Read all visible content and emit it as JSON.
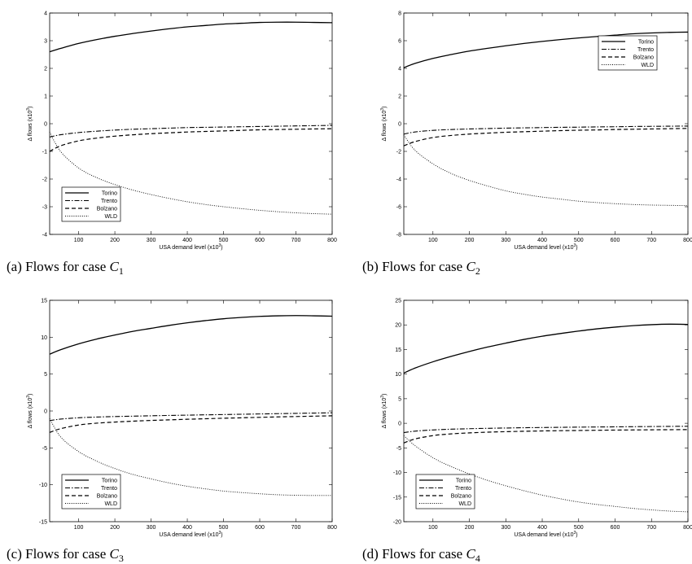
{
  "chart_data": [
    {
      "type": "line",
      "caption": {
        "prefix": "(a)  Flows for case ",
        "var": "C",
        "sub": "1"
      },
      "xlabel": "USA demand level (x10",
      "xlabel_sup": "3",
      "ylabel": "Δ flows (x10",
      "ylabel_sup": "3",
      "xlim": [
        20,
        800
      ],
      "ylim": [
        -4,
        4
      ],
      "xticks": [
        100,
        200,
        300,
        400,
        500,
        600,
        700,
        800
      ],
      "xtick_labels": [
        "100",
        "200",
        "300",
        "400",
        "500",
        "600",
        "700",
        "800"
      ],
      "yticks": [
        -4,
        -3,
        -2,
        -1,
        0,
        1,
        2,
        3,
        4
      ],
      "ytick_labels": [
        "-4",
        "-3",
        "-2",
        "-1",
        "0",
        "1",
        "2",
        "3",
        "4"
      ],
      "legend_position": "bottom-left",
      "x": [
        20,
        50,
        100,
        150,
        200,
        250,
        300,
        350,
        400,
        450,
        500,
        550,
        600,
        650,
        700,
        750,
        800
      ],
      "series": [
        {
          "name": "Torino",
          "style": "solid",
          "values": [
            2.6,
            2.72,
            2.9,
            3.04,
            3.16,
            3.26,
            3.35,
            3.43,
            3.5,
            3.55,
            3.6,
            3.63,
            3.66,
            3.67,
            3.67,
            3.66,
            3.65
          ]
        },
        {
          "name": "Trento",
          "style": "dashdot",
          "values": [
            -0.48,
            -0.4,
            -0.32,
            -0.27,
            -0.23,
            -0.2,
            -0.18,
            -0.16,
            -0.14,
            -0.13,
            -0.12,
            -0.11,
            -0.1,
            -0.09,
            -0.08,
            -0.07,
            -0.06
          ]
        },
        {
          "name": "Bolzano",
          "style": "dashed",
          "values": [
            -1.0,
            -0.8,
            -0.62,
            -0.52,
            -0.45,
            -0.4,
            -0.36,
            -0.33,
            -0.3,
            -0.28,
            -0.26,
            -0.24,
            -0.22,
            -0.21,
            -0.2,
            -0.19,
            -0.18
          ]
        },
        {
          "name": "WLD",
          "style": "dotted",
          "values": [
            -0.3,
            -1.0,
            -1.6,
            -1.95,
            -2.2,
            -2.4,
            -2.56,
            -2.7,
            -2.82,
            -2.92,
            -3.0,
            -3.07,
            -3.13,
            -3.18,
            -3.22,
            -3.25,
            -3.27
          ]
        }
      ]
    },
    {
      "type": "line",
      "caption": {
        "prefix": "(b)  Flows for case ",
        "var": "C",
        "sub": "2"
      },
      "xlabel": "USA demand level (x10",
      "xlabel_sup": "3",
      "ylabel": "Δ flows (x10",
      "ylabel_sup": "3",
      "xlim": [
        20,
        800
      ],
      "ylim": [
        -8,
        8
      ],
      "xticks": [
        100,
        200,
        300,
        400,
        500,
        600,
        700,
        800
      ],
      "xtick_labels": [
        "100",
        "200",
        "300",
        "400",
        "500",
        "600",
        "700",
        "800"
      ],
      "yticks": [
        -8,
        -6,
        -4,
        -2,
        0,
        2,
        4,
        6,
        8
      ],
      "ytick_labels": [
        "-8",
        "-6",
        "-4",
        "-2",
        "0",
        "2",
        "4",
        "6",
        "8"
      ],
      "legend_position": "top-right",
      "x": [
        20,
        50,
        100,
        150,
        200,
        250,
        300,
        350,
        400,
        450,
        500,
        550,
        600,
        650,
        700,
        750,
        800
      ],
      "series": [
        {
          "name": "Torino",
          "style": "solid",
          "values": [
            4.05,
            4.35,
            4.72,
            5.0,
            5.25,
            5.45,
            5.63,
            5.8,
            5.95,
            6.08,
            6.2,
            6.3,
            6.4,
            6.5,
            6.56,
            6.6,
            6.62
          ]
        },
        {
          "name": "Trento",
          "style": "dashdot",
          "values": [
            -0.75,
            -0.6,
            -0.48,
            -0.42,
            -0.38,
            -0.35,
            -0.32,
            -0.3,
            -0.28,
            -0.26,
            -0.25,
            -0.23,
            -0.22,
            -0.2,
            -0.19,
            -0.18,
            -0.17
          ]
        },
        {
          "name": "Bolzano",
          "style": "dashed",
          "values": [
            -1.6,
            -1.3,
            -1.0,
            -0.85,
            -0.75,
            -0.68,
            -0.62,
            -0.58,
            -0.54,
            -0.5,
            -0.47,
            -0.45,
            -0.42,
            -0.4,
            -0.38,
            -0.36,
            -0.34
          ]
        },
        {
          "name": "WLD",
          "style": "dotted",
          "values": [
            -0.8,
            -1.9,
            -2.9,
            -3.6,
            -4.1,
            -4.5,
            -4.85,
            -5.1,
            -5.3,
            -5.45,
            -5.6,
            -5.7,
            -5.78,
            -5.84,
            -5.88,
            -5.9,
            -5.92
          ]
        }
      ]
    },
    {
      "type": "line",
      "caption": {
        "prefix": "(c)  Flows for case ",
        "var": "C",
        "sub": "3"
      },
      "xlabel": "USA demand level (x10",
      "xlabel_sup": "3",
      "ylabel": "Δ flows (x10",
      "ylabel_sup": "3",
      "xlim": [
        20,
        800
      ],
      "ylim": [
        -15,
        15
      ],
      "xticks": [
        100,
        200,
        300,
        400,
        500,
        600,
        700,
        800
      ],
      "xtick_labels": [
        "100",
        "200",
        "300",
        "400",
        "500",
        "600",
        "700",
        "800"
      ],
      "yticks": [
        -15,
        -10,
        -5,
        0,
        5,
        10,
        15
      ],
      "ytick_labels": [
        "-15",
        "-10",
        "-5",
        "0",
        "5",
        "10",
        "15"
      ],
      "legend_position": "bottom-left",
      "x": [
        20,
        50,
        100,
        150,
        200,
        250,
        300,
        350,
        400,
        450,
        500,
        550,
        600,
        650,
        700,
        750,
        800
      ],
      "series": [
        {
          "name": "Torino",
          "style": "solid",
          "values": [
            7.7,
            8.3,
            9.1,
            9.75,
            10.3,
            10.8,
            11.2,
            11.6,
            11.95,
            12.25,
            12.5,
            12.68,
            12.82,
            12.9,
            12.93,
            12.9,
            12.85
          ]
        },
        {
          "name": "Trento",
          "style": "dashdot",
          "values": [
            -1.3,
            -1.1,
            -0.92,
            -0.82,
            -0.75,
            -0.7,
            -0.65,
            -0.6,
            -0.56,
            -0.52,
            -0.48,
            -0.44,
            -0.4,
            -0.36,
            -0.32,
            -0.28,
            -0.24
          ]
        },
        {
          "name": "Bolzano",
          "style": "dashed",
          "values": [
            -2.9,
            -2.4,
            -1.9,
            -1.65,
            -1.5,
            -1.38,
            -1.28,
            -1.2,
            -1.12,
            -1.05,
            -0.98,
            -0.92,
            -0.86,
            -0.8,
            -0.75,
            -0.7,
            -0.65
          ]
        },
        {
          "name": "WLD",
          "style": "dotted",
          "values": [
            -1.0,
            -3.5,
            -5.5,
            -6.8,
            -7.8,
            -8.6,
            -9.2,
            -9.75,
            -10.2,
            -10.55,
            -10.85,
            -11.05,
            -11.22,
            -11.35,
            -11.42,
            -11.45,
            -11.45
          ]
        }
      ]
    },
    {
      "type": "line",
      "caption": {
        "prefix": "(d)  Flows for case ",
        "var": "C",
        "sub": "4"
      },
      "xlabel": "USA demand level (x10",
      "xlabel_sup": "3",
      "ylabel": "Δ flows (x10",
      "ylabel_sup": "3",
      "xlim": [
        20,
        800
      ],
      "ylim": [
        -20,
        25
      ],
      "xticks": [
        100,
        200,
        300,
        400,
        500,
        600,
        700,
        800
      ],
      "xtick_labels": [
        "100",
        "200",
        "300",
        "400",
        "500",
        "600",
        "700",
        "800"
      ],
      "yticks": [
        -20,
        -15,
        -10,
        -5,
        0,
        5,
        10,
        15,
        20,
        25
      ],
      "ytick_labels": [
        "-20",
        "-15",
        "-10",
        "-5",
        "0",
        "5",
        "10",
        "15",
        "20",
        "25"
      ],
      "legend_position": "bottom-left",
      "x": [
        20,
        50,
        100,
        150,
        200,
        250,
        300,
        350,
        400,
        450,
        500,
        550,
        600,
        650,
        700,
        750,
        800
      ],
      "series": [
        {
          "name": "Torino",
          "style": "solid",
          "values": [
            10.2,
            11.2,
            12.5,
            13.6,
            14.6,
            15.5,
            16.3,
            17.05,
            17.7,
            18.25,
            18.75,
            19.2,
            19.55,
            19.85,
            20.05,
            20.15,
            20.1
          ]
        },
        {
          "name": "Trento",
          "style": "dashdot",
          "values": [
            -1.9,
            -1.6,
            -1.35,
            -1.2,
            -1.1,
            -1.02,
            -0.96,
            -0.9,
            -0.86,
            -0.82,
            -0.78,
            -0.75,
            -0.72,
            -0.69,
            -0.66,
            -0.63,
            -0.6
          ]
        },
        {
          "name": "Bolzano",
          "style": "dashed",
          "values": [
            -4.0,
            -3.2,
            -2.5,
            -2.15,
            -1.95,
            -1.8,
            -1.7,
            -1.62,
            -1.55,
            -1.5,
            -1.46,
            -1.42,
            -1.38,
            -1.35,
            -1.32,
            -1.3,
            -1.28
          ]
        },
        {
          "name": "WLD",
          "style": "dotted",
          "values": [
            -2.5,
            -4.5,
            -7.0,
            -8.8,
            -10.3,
            -11.6,
            -12.7,
            -13.7,
            -14.6,
            -15.35,
            -16.0,
            -16.5,
            -16.9,
            -17.3,
            -17.6,
            -17.85,
            -18.0
          ]
        }
      ]
    }
  ]
}
